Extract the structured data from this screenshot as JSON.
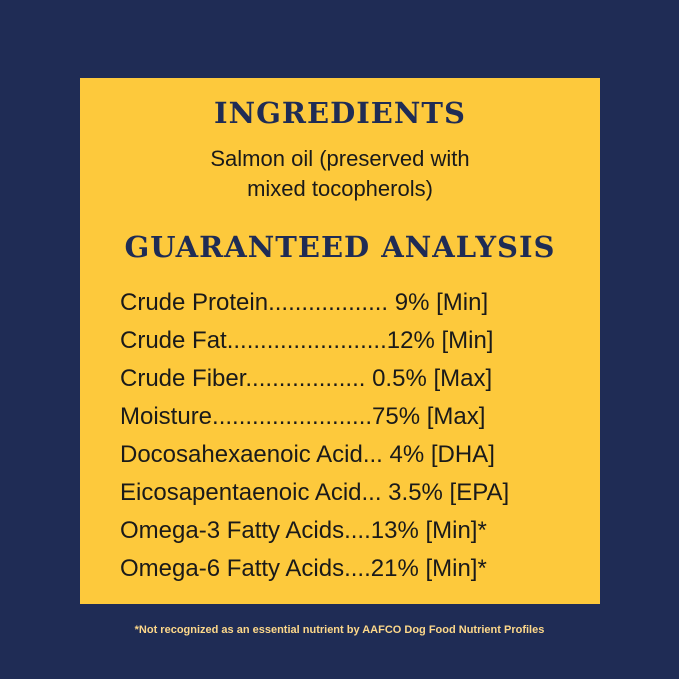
{
  "ingredients": {
    "heading": "INGREDIENTS",
    "line1": "Salmon oil (preserved with",
    "line2": "mixed tocopherols)"
  },
  "analysis": {
    "heading": "GUARANTEED ANALYSIS",
    "rows": [
      "Crude Protein.................. 9% [Min]",
      "Crude Fat........................12% [Min]",
      "Crude Fiber.................. 0.5% [Max]",
      "Moisture........................75% [Max]",
      "Docosahexaenoic Acid... 4% [DHA]",
      "Eicosapentaenoic Acid... 3.5% [EPA]",
      "Omega-3 Fatty Acids....13% [Min]*",
      "Omega-6 Fatty Acids....21% [Min]*"
    ]
  },
  "footnote": "*Not recognized as an essential nutrient by AAFCO Dog Food Nutrient Profiles",
  "colors": {
    "background": "#1f2c55",
    "panel": "#fdc93c",
    "heading": "#1f2c55"
  }
}
